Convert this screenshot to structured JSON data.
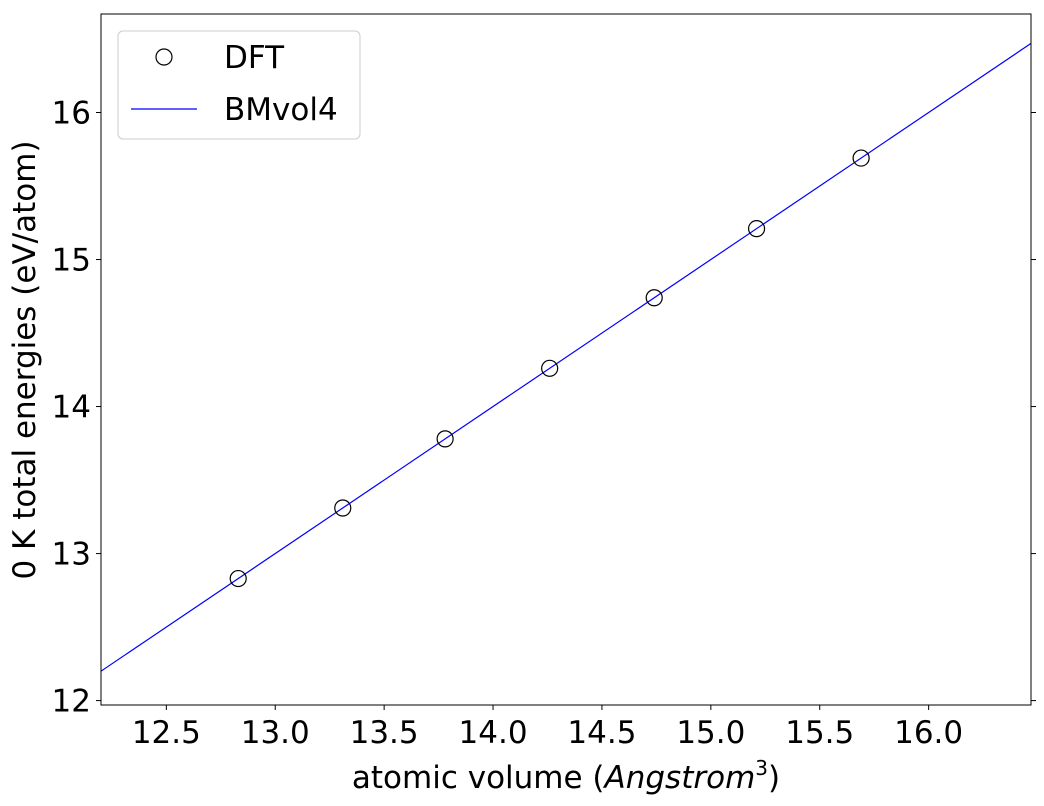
{
  "chart_data": {
    "type": "line",
    "xlabel": "atomic volume (",
    "xlabel_italic": "Angstrom",
    "xlabel_sup": "3",
    "xlabel_end": ")",
    "ylabel": "0 K total energies (eV/atom)",
    "xlim": [
      12.2,
      16.47
    ],
    "ylim": [
      11.97,
      16.67
    ],
    "xticks": [
      12.5,
      13.0,
      13.5,
      14.0,
      14.5,
      15.0,
      15.5,
      16.0
    ],
    "xtick_labels": [
      "12.5",
      "13.0",
      "13.5",
      "14.0",
      "14.5",
      "15.0",
      "15.5",
      "16.0"
    ],
    "yticks": [
      12,
      13,
      14,
      15,
      16
    ],
    "ytick_labels": [
      "12",
      "13",
      "14",
      "15",
      "16"
    ],
    "legend_position": "top-left",
    "grid": false,
    "series": [
      {
        "name": "DFT",
        "kind": "scatter",
        "marker": "open-circle",
        "color": "#000000",
        "x": [
          12.83,
          13.31,
          13.78,
          14.26,
          14.74,
          15.21,
          15.69
        ],
        "y": [
          12.83,
          13.31,
          13.78,
          14.26,
          14.74,
          15.21,
          15.69
        ]
      },
      {
        "name": "BMvol4",
        "kind": "line",
        "color": "#0000ff",
        "x": [
          12.2,
          16.47
        ],
        "y": [
          12.2,
          16.47
        ]
      }
    ]
  }
}
